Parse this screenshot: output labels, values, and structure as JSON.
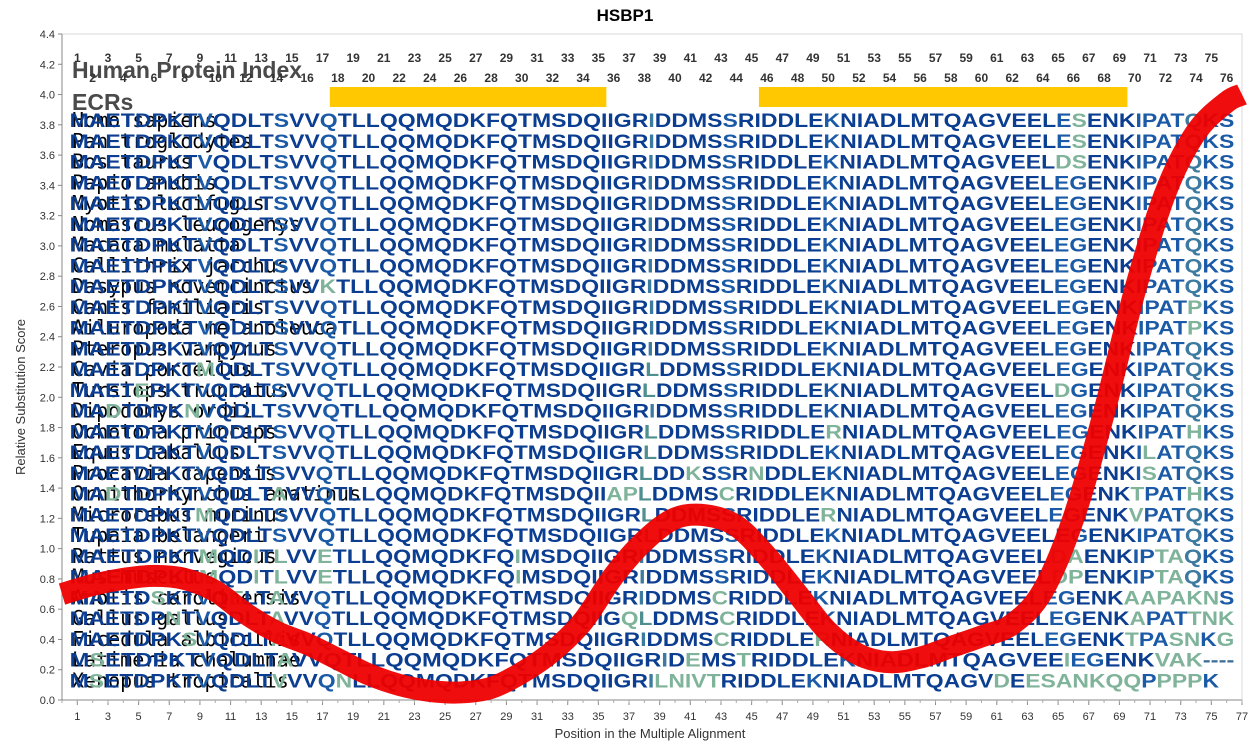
{
  "chart_data": {
    "type": "line",
    "title": "HSBP1",
    "xlabel": "Position in the Multiple Alignment",
    "ylabel": "Relative Substitution Score",
    "xlim": [
      0,
      77
    ],
    "ylim": [
      0.0,
      4.4
    ],
    "y_ticks": [
      "0.0",
      "0.2",
      "0.4",
      "0.6",
      "0.8",
      "1.0",
      "1.2",
      "1.4",
      "1.6",
      "1.8",
      "2.0",
      "2.2",
      "2.4",
      "2.6",
      "2.8",
      "3.0",
      "3.2",
      "3.4",
      "3.6",
      "3.8",
      "4.0",
      "4.2",
      "4.4"
    ],
    "x_ticks": [
      1,
      3,
      5,
      7,
      9,
      11,
      13,
      15,
      17,
      19,
      21,
      23,
      25,
      27,
      29,
      31,
      33,
      35,
      37,
      39,
      41,
      43,
      45,
      47,
      49,
      51,
      53,
      55,
      57,
      59,
      61,
      63,
      65,
      67,
      69,
      71,
      73,
      75,
      77
    ],
    "top_numbers_odd": [
      1,
      3,
      5,
      7,
      9,
      11,
      13,
      15,
      17,
      19,
      21,
      23,
      25,
      27,
      29,
      31,
      33,
      35,
      37,
      39,
      41,
      43,
      45,
      47,
      49,
      51,
      53,
      55,
      57,
      59,
      61,
      63,
      65,
      67,
      69,
      71,
      73,
      75
    ],
    "top_numbers_even": [
      2,
      4,
      6,
      8,
      10,
      12,
      14,
      16,
      18,
      20,
      22,
      24,
      26,
      28,
      30,
      32,
      34,
      36,
      38,
      40,
      42,
      44,
      46,
      48,
      50,
      52,
      54,
      56,
      58,
      60,
      62,
      64,
      66,
      68,
      70,
      72,
      74,
      76
    ],
    "header_index": "Human Protein Index",
    "header_ecrs": "ECRs",
    "ecrs": [
      [
        18,
        35
      ],
      [
        46,
        69
      ]
    ],
    "series": [
      {
        "color": "#ee0000",
        "x": [
          0,
          2,
          4,
          6,
          8,
          10,
          12,
          14,
          16,
          18,
          20,
          22,
          24,
          26,
          28,
          30,
          32,
          34,
          36,
          38,
          40,
          42,
          44,
          46,
          48,
          50,
          52,
          54,
          56,
          58,
          60,
          62,
          64,
          66,
          68,
          70,
          72,
          74,
          76,
          77
        ],
        "y": [
          0.7,
          0.76,
          0.8,
          0.82,
          0.8,
          0.72,
          0.57,
          0.45,
          0.37,
          0.27,
          0.17,
          0.1,
          0.06,
          0.05,
          0.08,
          0.18,
          0.32,
          0.52,
          0.82,
          1.05,
          1.2,
          1.22,
          1.15,
          0.95,
          0.7,
          0.45,
          0.3,
          0.25,
          0.28,
          0.35,
          0.42,
          0.5,
          0.72,
          1.2,
          1.9,
          2.7,
          3.35,
          3.75,
          3.95,
          4.0
        ]
      }
    ],
    "alignment": [
      {
        "species": "Homo sapiens",
        "sequence": "MAETDPKTVQDLTSVVQTLLQQMQDKFQTMSDQIIGRIDDMSSRIDDLEKNIADLMTQAGVEELESENKIPATQKS"
      },
      {
        "species": "Pan troglodytes",
        "sequence": "MAETDPKTVQDLTSVVQTLLQQMQDKFQTMSDQIIGRIDDMSSRIDDLEKNIADLMTQAGVEELESENKIPATQKS"
      },
      {
        "species": "Bos taurus",
        "sequence": "MAETDPKTVQDLTSVVQTLLQQMQDKFQTMSDQIIGRIDDMSSRIDDLEKNIADLMTQAGVEELDSENKIPATQKS"
      },
      {
        "species": "Papio anubis",
        "sequence": "MAETDPKTVQDLTSVVQTLLQQMQDKFQTMSDQIIGRIDDMSSRIDDLEKNIADLMTQAGVEELEGENKIPATQKS"
      },
      {
        "species": "Myotis lucifugus",
        "sequence": "MAETDPKTVQDLTSVVQTLLQQMQDKFQTMSDQIIGRIDDMSSRIDDLEKNIADLMTQAGVEELEGENKIPATQKS"
      },
      {
        "species": "Nomascus leucogenys",
        "sequence": "MAETDPKTVQDLTSVVQTLLQQMQDKFQTMSDQIIGRIDDMSSRIDDLEKNIADLMTQAGVEELEGENKIPATQKS"
      },
      {
        "species": "Macaca mulatta",
        "sequence": "MAETDPKTVQDLTSVVQTLLQQMQDKFQTMSDQIIGRIDDMSSRIDDLEKNIADLMTQAGVEELEGENKIPATQKS"
      },
      {
        "species": "Callithrix jacchus",
        "sequence": "MAETDPKTVQDLTSVVQTLLQQMQDKFQTMSDQIIGRIDDMSSRIDDLEKNIADLMTQAGVEELEGENKIPATQKS"
      },
      {
        "species": "Dasypus novemcinctus",
        "sequence": "MAETDPKTVQDLTSVVKTLLQQMQDKFQTMSDQIIGRIDDMSSRIDDLEKNIADLMTQAGVEELEGENKIPATQKS"
      },
      {
        "species": "Canis familiaris",
        "sequence": "MAETDPKTVQDLTSVVQTLLQQMQDKFQTMSDQIIGRIDDMSSRIDDLEKNIADLMTQAGVEELEGENKIPATPKS"
      },
      {
        "species": "Ailuropoda melanoleuca",
        "sequence": "MAETDPKTVQDLTSVVQTLLQQMQDKFQTMSDQIIGRIDDMSSRIDDLEKNIADLMTQAGVEELEGENKIPATPKS"
      },
      {
        "species": "Pteropus vampyrus",
        "sequence": "MAETDPKTVQDLTSVVQTLLQQMQDKFQTMSDQIIGRIDDMSSRIDDLEKNIADLMTQAGVEELEGENKIPATQKS"
      },
      {
        "species": "Cavia porcellus",
        "sequence": "MAETDPKTMQDLTSVVQTLLQQMQDKFQTMSDQIIGRLDDMSSRIDDLEKNIADLMTQAGVEELEGENKIPATQKS"
      },
      {
        "species": "Tursiops truncatus",
        "sequence": "MAETEPKTVQDLTSVVQTLLQQMQDKFQTMSDQIIGRLDDMSSRIDDLEKNIADLMTQAGVEELDGENKIPATQKS"
      },
      {
        "species": "Dipodomys ordii",
        "sequence": "MADTDPKNVQDLTSVVQTLLQQMQDKFQTMSDQIIGRIDDMSSRIDDLEKNIADLMTQAGVEELEGENKIPATQKS"
      },
      {
        "species": "Ochotona princeps",
        "sequence": "MAETDPKTVQDLTSVVQTLLQQMQDKFQTMSDQIIGRLDDMSSRIDDLERNIADLMTQAGVEELEGENKIPATHKS"
      },
      {
        "species": "Equus caballus",
        "sequence": "MAETDPKTVQDLTSVVQTLLQQMQDKFQTMSDQIIGRLDDMSSRIDDLEKNIADLMTQAGVEELEGENKILATQKS"
      },
      {
        "species": "Procavia capensis",
        "sequence": "MAETDPKTVQDLTSVVQTLLQQMQDKFQTMSDQIIGRLDDKSSRNDDLEKNIADLMTQAGVEELEGENKISATQKS"
      },
      {
        "species": "Ornithorhynchus anatinus",
        "sequence": "MADTDPKTVQDLTAVVQTLLQQMQDKFQTMSDQIIAPLDDMSCRIDDLEKNIADLMTQAGVEELEGENKTPATHKS"
      },
      {
        "species": "Microcebus murinus",
        "sequence": "MAETDPKTMQDLTSVVQTLLQQMQDKFQTMSDQIIGRLDDMSSRIDDLERNIADLMTQAGVEELEGENKVPATQKS"
      },
      {
        "species": "Tupaia belangeri",
        "sequence": "MAETDPKTVQDLTSVVQTLLQQMQDKFQTMSDQIIGRLDDMSSRIDDLEKNIADLMTQAGVEELEGENKIPATQKS"
      },
      {
        "species": "Rattus norvegicus",
        "sequence": "MAETDPKTMQDITLVVETLLQQMQDKFQIMSDQIIGRIDDMSSRIDDLEKNIADLMTQAGVEELDAENKIPTAQKS"
      },
      {
        "species": "Mus musculus",
        "sequence": "MAETDPKTMQDITLVVETLLQQMQDKFQIMSDQIIGRIDDMSSRIDDLEKNIADLMTQAGVEELDPENKIPTAQKS"
      },
      {
        "species": "Anolis carolinensis",
        "sequence": "MAETDSKTVQELTAVVQTLLQQMQDKFQTMSDQIIGRIDDMSCRIDDLEKNIADLMTQAGVEELEGENKAAPAKNS"
      },
      {
        "species": "Gallus gallus",
        "sequence": "MAETDPNTVQDLTAVVQTLLQQMQDKFQTMSDQIIGQLDDMSCRIDDLEKNIADLMTQAGVEELEGENKAPATTNK"
      },
      {
        "species": "Ficedula albicollis",
        "sequence": "MAETDPKSVQDLTAVVQTLLQQMQDKFQTMSDQIIGRIDDMSCRIDDLERNIADLMTQAGVEELEGENKTPASNKG"
      },
      {
        "species": "Latimeria chalumnae",
        "sequence": "MSETDPKTVQDLTAVVQTLLQQMQDKFQTMSDQIIGRIDEMSTRIDDLEKNIADLMTQAGVEEIEGENKVAK----"
      },
      {
        "species": "Xenopus tropicalis",
        "sequence": "MSETDPKTVQDLTVVVQNLLQQMQDKFQTMSDQIIGRILNIVTRIDDLEKNIADLMTQAGVDEESANKQQPPPPK"
      }
    ]
  }
}
